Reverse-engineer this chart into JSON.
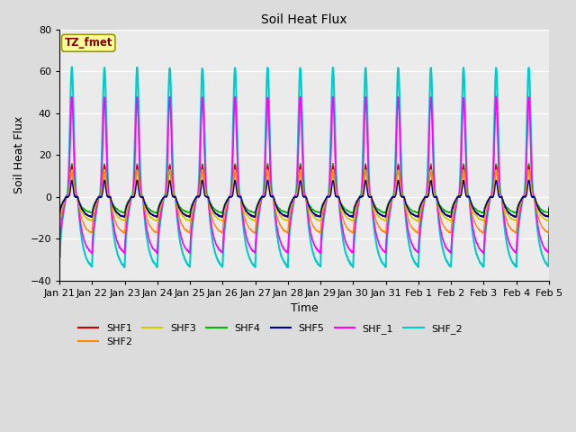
{
  "title": "Soil Heat Flux",
  "xlabel": "Time",
  "ylabel": "Soil Heat Flux",
  "ylim": [
    -40,
    80
  ],
  "annotation_text": "TZ_fmet",
  "annotation_color": "#8B0000",
  "annotation_bg": "#FFFF99",
  "annotation_border": "#999900",
  "series_order": [
    "SHF_2",
    "SHF_1",
    "SHF4",
    "SHF1",
    "SHF3",
    "SHF2",
    "SHF5"
  ],
  "series": {
    "SHF1": {
      "color": "#CC0000",
      "lw": 1.0,
      "day_peak": 15.0,
      "night_min": -10.0,
      "sharpness": 8
    },
    "SHF2": {
      "color": "#FF8800",
      "lw": 1.0,
      "day_peak": 12.0,
      "night_min": -18.0,
      "sharpness": 4
    },
    "SHF3": {
      "color": "#CCCC00",
      "lw": 1.0,
      "day_peak": 13.0,
      "night_min": -12.0,
      "sharpness": 6
    },
    "SHF4": {
      "color": "#00BB00",
      "lw": 1.0,
      "day_peak": 16.0,
      "night_min": -8.0,
      "sharpness": 9
    },
    "SHF5": {
      "color": "#000099",
      "lw": 1.0,
      "day_peak": 8.0,
      "night_min": -10.0,
      "sharpness": 10
    },
    "SHF_1": {
      "color": "#FF00FF",
      "lw": 1.2,
      "day_peak": 48.0,
      "night_min": -28.0,
      "sharpness": 5
    },
    "SHF_2": {
      "color": "#00CCCC",
      "lw": 1.5,
      "day_peak": 62.0,
      "night_min": -35.0,
      "sharpness": 4
    }
  },
  "x_tick_labels": [
    "Jan 21",
    "Jan 22",
    "Jan 23",
    "Jan 24",
    "Jan 25",
    "Jan 26",
    "Jan 27",
    "Jan 28",
    "Jan 29",
    "Jan 30",
    "Jan 31",
    "Feb 1",
    "Feb 2",
    "Feb 3",
    "Feb 4",
    "Feb 5"
  ],
  "n_days": 15,
  "pts_per_day": 288,
  "background_color": "#DCDCDC",
  "plot_bg": "#EBEBEB",
  "grid_color": "#FFFFFF",
  "legend_names": [
    "SHF1",
    "SHF2",
    "SHF3",
    "SHF4",
    "SHF5",
    "SHF_1",
    "SHF_2"
  ]
}
